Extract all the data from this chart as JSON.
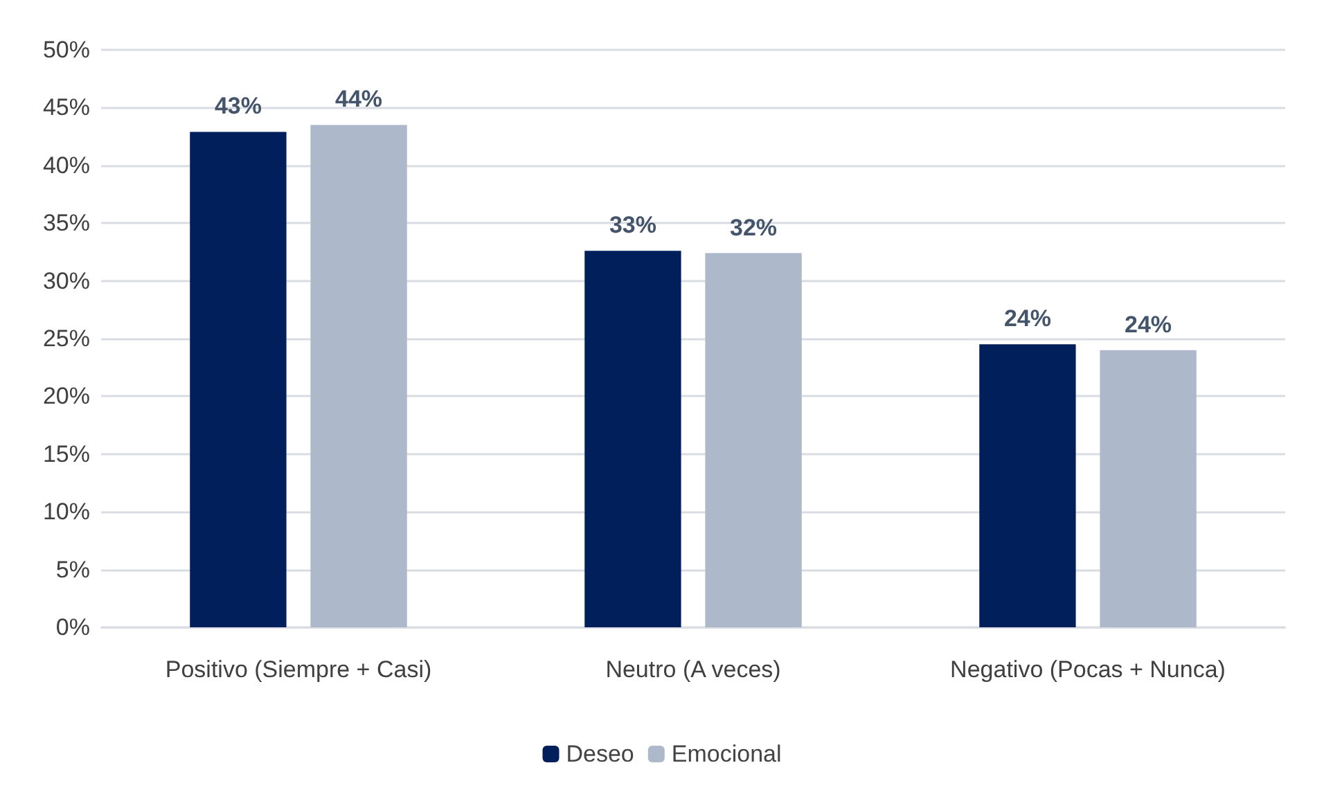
{
  "chart_data": {
    "type": "bar",
    "categories": [
      "Positivo (Siempre + Casi)",
      "Neutro (A veces)",
      "Negativo (Pocas + Nunca)"
    ],
    "series": [
      {
        "name": "Deseo",
        "color": "#001f5b",
        "values": [
          42.9,
          32.6,
          24.5
        ],
        "value_labels": [
          "43%",
          "33%",
          "24%"
        ]
      },
      {
        "name": "Emocional",
        "color": "#adb9ca",
        "values": [
          43.5,
          32.4,
          24.0
        ],
        "value_labels": [
          "44%",
          "32%",
          "24%"
        ]
      }
    ],
    "ylim": [
      0,
      50
    ],
    "yticks": [
      {
        "value": 0,
        "label": "0%"
      },
      {
        "value": 5,
        "label": "5%"
      },
      {
        "value": 10,
        "label": "10%"
      },
      {
        "value": 15,
        "label": "15%"
      },
      {
        "value": 20,
        "label": "20%"
      },
      {
        "value": 25,
        "label": "25%"
      },
      {
        "value": 30,
        "label": "30%"
      },
      {
        "value": 35,
        "label": "35%"
      },
      {
        "value": 40,
        "label": "40%"
      },
      {
        "value": 45,
        "label": "45%"
      },
      {
        "value": 50,
        "label": "50%"
      }
    ],
    "grid": "y",
    "legend": "bottom"
  }
}
